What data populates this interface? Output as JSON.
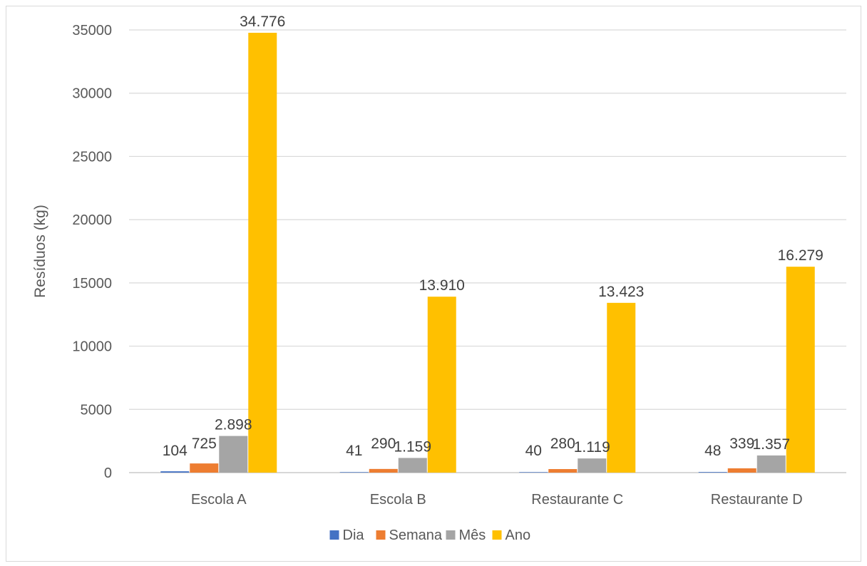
{
  "chart_data": {
    "type": "bar",
    "title": "",
    "xlabel": "",
    "ylabel": "Resíduos (kg)",
    "ylim": [
      0,
      35000
    ],
    "yticks": [
      0,
      5000,
      10000,
      15000,
      20000,
      25000,
      30000,
      35000
    ],
    "grid": true,
    "legend_position": "bottom",
    "categories": [
      "Escola A",
      "Escola B",
      "Restaurante C",
      "Restaurante D"
    ],
    "series": [
      {
        "name": "Dia",
        "color": "#4472c4",
        "values": [
          104,
          41,
          40,
          48
        ],
        "labels": [
          "104",
          "41",
          "40",
          "48"
        ]
      },
      {
        "name": "Semana",
        "color": "#ed7d31",
        "values": [
          725,
          290,
          280,
          339
        ],
        "labels": [
          "725",
          "290",
          "280",
          "339"
        ]
      },
      {
        "name": "Mês",
        "color": "#a5a5a5",
        "values": [
          2898,
          1159,
          1119,
          1357
        ],
        "labels": [
          "2.898",
          "1.159",
          "1.119",
          "1.357"
        ]
      },
      {
        "name": "Ano",
        "color": "#ffc000",
        "values": [
          34776,
          13910,
          13423,
          16279
        ],
        "labels": [
          "34.776",
          "13.910",
          "13.423",
          "16.279"
        ]
      }
    ]
  }
}
